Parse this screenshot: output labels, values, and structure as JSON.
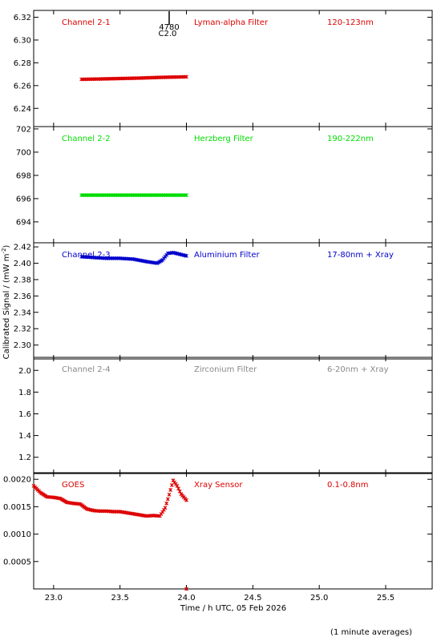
{
  "chart_data": {
    "type": "scatter",
    "x_axis": {
      "label": "Time / h UTC, 05 Feb 2026",
      "range": [
        22.85,
        25.85
      ],
      "ticks": [
        23.0,
        23.5,
        24.0,
        24.5,
        25.0,
        25.5
      ],
      "tick_labels": [
        "23.0",
        "23.5",
        "24.0",
        "24.5",
        "25.0",
        "25.5"
      ]
    },
    "y_axis_label": "Calibrated Signal / (mW m",
    "y_axis_label_sup": "-2",
    "y_axis_label_end": ")",
    "footnote": "(1 minute averages)",
    "marker": {
      "label_top": "4780",
      "label_bottom": "C2.0",
      "x": 23.87
    },
    "panels": [
      {
        "channel": "Channel 2-1",
        "filter": "Lyman-alpha Filter",
        "band": "120-123nm",
        "color": "#dd0000",
        "ylim": [
          6.224,
          6.326
        ],
        "yticks": [
          6.24,
          6.26,
          6.28,
          6.3,
          6.32
        ],
        "ytick_labels": [
          "6.24",
          "6.26",
          "6.28",
          "6.30",
          "6.32"
        ],
        "series": {
          "x": [
            23.21,
            23.35,
            23.5,
            23.65,
            23.8,
            24.0
          ],
          "y": [
            6.2655,
            6.2658,
            6.2662,
            6.2666,
            6.2672,
            6.2677
          ]
        }
      },
      {
        "channel": "Channel 2-2",
        "filter": "Herzberg Filter",
        "band": "190-222nm",
        "color": "#00dd00",
        "ylim": [
          692.2,
          702.2
        ],
        "yticks": [
          694,
          696,
          698,
          700,
          702
        ],
        "ytick_labels": [
          "694",
          "696",
          "698",
          "700",
          "702"
        ],
        "series": {
          "x": [
            23.21,
            23.4,
            23.6,
            23.8,
            24.0
          ],
          "y": [
            696.3,
            696.3,
            696.3,
            696.3,
            696.3
          ]
        }
      },
      {
        "channel": "Channel 2-3",
        "filter": "Aluminium Filter",
        "band": "17-80nm + Xray",
        "color": "#0000cc",
        "ylim": [
          2.283,
          2.425
        ],
        "yticks": [
          2.3,
          2.32,
          2.34,
          2.36,
          2.38,
          2.4,
          2.42
        ],
        "ytick_labels": [
          "2.30",
          "2.32",
          "2.34",
          "2.36",
          "2.38",
          "2.40",
          "2.42"
        ],
        "series": {
          "x": [
            23.21,
            23.3,
            23.4,
            23.5,
            23.6,
            23.7,
            23.78,
            23.82,
            23.86,
            23.9,
            23.95,
            24.0
          ],
          "y": [
            2.408,
            2.407,
            2.406,
            2.406,
            2.405,
            2.402,
            2.4,
            2.404,
            2.412,
            2.413,
            2.411,
            2.409
          ]
        }
      },
      {
        "channel": "Channel 2-4",
        "filter": "Zirconium Filter",
        "band": "6-20nm + Xray",
        "color": "#888888",
        "ylim": [
          1.05,
          2.12
        ],
        "yticks": [
          1.2,
          1.4,
          1.6,
          1.8,
          2.0
        ],
        "ytick_labels": [
          "1.2",
          "1.4",
          "1.6",
          "1.8",
          "2.0"
        ],
        "series": {
          "x": [],
          "y": []
        }
      },
      {
        "channel": "GOES",
        "filter": "Xray Sensor",
        "band": "0.1-0.8nm",
        "color": "#dd0000",
        "ylim": [
          0.0,
          0.00212
        ],
        "yticks": [
          0.0005,
          0.001,
          0.0015,
          0.002
        ],
        "ytick_labels": [
          "0.0005",
          "0.0010",
          "0.0015",
          "0.0020"
        ],
        "series": {
          "x": [
            22.85,
            22.9,
            22.95,
            23.0,
            23.05,
            23.1,
            23.15,
            23.2,
            23.25,
            23.3,
            23.35,
            23.4,
            23.45,
            23.5,
            23.55,
            23.6,
            23.65,
            23.7,
            23.75,
            23.8,
            23.84,
            23.87,
            23.9,
            23.93,
            23.96,
            24.0
          ],
          "y": [
            0.00188,
            0.00176,
            0.00168,
            0.00167,
            0.00165,
            0.00158,
            0.00156,
            0.00155,
            0.00146,
            0.00143,
            0.00142,
            0.00142,
            0.00141,
            0.00141,
            0.00139,
            0.00137,
            0.00135,
            0.00133,
            0.00134,
            0.00133,
            0.00148,
            0.00172,
            0.00198,
            0.00188,
            0.00173,
            0.00162
          ]
        },
        "extra_point": {
          "x": 24.0,
          "y": 0.0
        }
      }
    ]
  }
}
